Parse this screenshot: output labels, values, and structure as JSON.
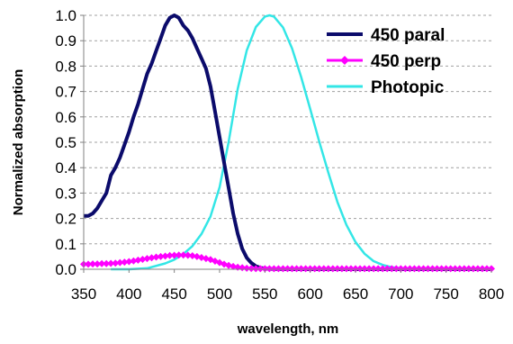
{
  "chart_data": {
    "type": "line",
    "title": "",
    "xlabel": "wavelength, nm",
    "ylabel": "Normalized absorption",
    "xlim": [
      350,
      800
    ],
    "ylim": [
      0,
      1.0
    ],
    "x_ticks": [
      350,
      400,
      450,
      500,
      550,
      600,
      650,
      700,
      750,
      800
    ],
    "x_tick_labels": [
      "350",
      "400",
      "450",
      "500",
      "550",
      "600",
      "650",
      "700",
      "750",
      "800"
    ],
    "y_ticks": [
      0,
      0.1,
      0.2,
      0.3,
      0.4,
      0.5,
      0.6,
      0.7,
      0.8,
      0.9,
      1.0
    ],
    "y_tick_labels": [
      "0.0",
      "0.1",
      "0.2",
      "0.3",
      "0.4",
      "0.5",
      "0.6",
      "0.7",
      "0.8",
      "0.9",
      "1.0"
    ],
    "grid": "horizontal dashed",
    "legend_position": "top-right",
    "series": [
      {
        "name": "450 paral",
        "color": "#0b0b6b",
        "marker": "none",
        "x": [
          350,
          355,
          360,
          365,
          370,
          375,
          380,
          385,
          390,
          395,
          400,
          405,
          410,
          415,
          420,
          425,
          430,
          435,
          440,
          445,
          450,
          455,
          460,
          465,
          470,
          475,
          480,
          485,
          490,
          495,
          500,
          505,
          510,
          515,
          520,
          525,
          530,
          535,
          540,
          545,
          550,
          560,
          580,
          600,
          650,
          700,
          750,
          800
        ],
        "y": [
          0.21,
          0.21,
          0.22,
          0.24,
          0.27,
          0.3,
          0.37,
          0.4,
          0.44,
          0.49,
          0.54,
          0.6,
          0.65,
          0.71,
          0.77,
          0.81,
          0.86,
          0.91,
          0.96,
          0.99,
          1.0,
          0.99,
          0.96,
          0.94,
          0.91,
          0.87,
          0.83,
          0.79,
          0.72,
          0.62,
          0.52,
          0.42,
          0.32,
          0.22,
          0.14,
          0.08,
          0.045,
          0.025,
          0.012,
          0.006,
          0.003,
          0.001,
          0,
          0,
          0,
          0,
          0,
          0
        ]
      },
      {
        "name": "450 perp",
        "color": "#ff00ff",
        "marker": "diamond",
        "x": [
          350,
          355,
          360,
          365,
          370,
          375,
          380,
          385,
          390,
          395,
          400,
          405,
          410,
          415,
          420,
          425,
          430,
          435,
          440,
          445,
          450,
          455,
          460,
          465,
          470,
          475,
          480,
          485,
          490,
          495,
          500,
          505,
          510,
          515,
          520,
          525,
          530,
          535,
          540,
          545,
          550,
          555,
          560,
          565,
          570,
          575,
          580,
          585,
          590,
          595,
          600,
          605,
          610,
          615,
          620,
          625,
          630,
          635,
          640,
          645,
          650,
          655,
          660,
          665,
          670,
          675,
          680,
          685,
          690,
          695,
          700,
          705,
          710,
          715,
          720,
          725,
          730,
          735,
          740,
          745,
          750,
          755,
          760,
          765,
          770,
          775,
          780,
          785,
          790,
          795,
          800
        ],
        "y": [
          0.02,
          0.02,
          0.021,
          0.021,
          0.022,
          0.022,
          0.023,
          0.024,
          0.026,
          0.028,
          0.03,
          0.033,
          0.036,
          0.039,
          0.042,
          0.045,
          0.048,
          0.05,
          0.052,
          0.054,
          0.055,
          0.056,
          0.056,
          0.055,
          0.053,
          0.05,
          0.046,
          0.042,
          0.038,
          0.032,
          0.026,
          0.02,
          0.015,
          0.011,
          0.008,
          0.006,
          0.004,
          0.003,
          0.002,
          0.002,
          0.002,
          0.002,
          0.002,
          0.002,
          0.002,
          0.002,
          0.002,
          0.002,
          0.002,
          0.002,
          0.002,
          0.002,
          0.002,
          0.002,
          0.002,
          0.002,
          0.002,
          0.002,
          0.002,
          0.002,
          0.002,
          0.002,
          0.002,
          0.002,
          0.002,
          0.002,
          0.002,
          0.002,
          0.002,
          0.002,
          0.002,
          0.002,
          0.002,
          0.002,
          0.002,
          0.002,
          0.002,
          0.002,
          0.002,
          0.002,
          0.002,
          0.002,
          0.002,
          0.002,
          0.002,
          0.002,
          0.002,
          0.002,
          0.002,
          0.002,
          0.002
        ]
      },
      {
        "name": "Photopic",
        "color": "#33e6e6",
        "marker": "none",
        "x": [
          380,
          400,
          420,
          440,
          450,
          460,
          470,
          480,
          490,
          500,
          510,
          520,
          530,
          540,
          550,
          555,
          560,
          570,
          580,
          590,
          600,
          610,
          620,
          630,
          640,
          650,
          660,
          670,
          680,
          690,
          700,
          720,
          750,
          800
        ],
        "y": [
          0,
          0,
          0.004,
          0.023,
          0.038,
          0.06,
          0.091,
          0.139,
          0.208,
          0.323,
          0.503,
          0.71,
          0.862,
          0.954,
          0.995,
          1.0,
          0.995,
          0.952,
          0.87,
          0.757,
          0.631,
          0.503,
          0.381,
          0.265,
          0.175,
          0.107,
          0.061,
          0.032,
          0.017,
          0.008,
          0.004,
          0.001,
          0,
          0
        ]
      }
    ]
  }
}
